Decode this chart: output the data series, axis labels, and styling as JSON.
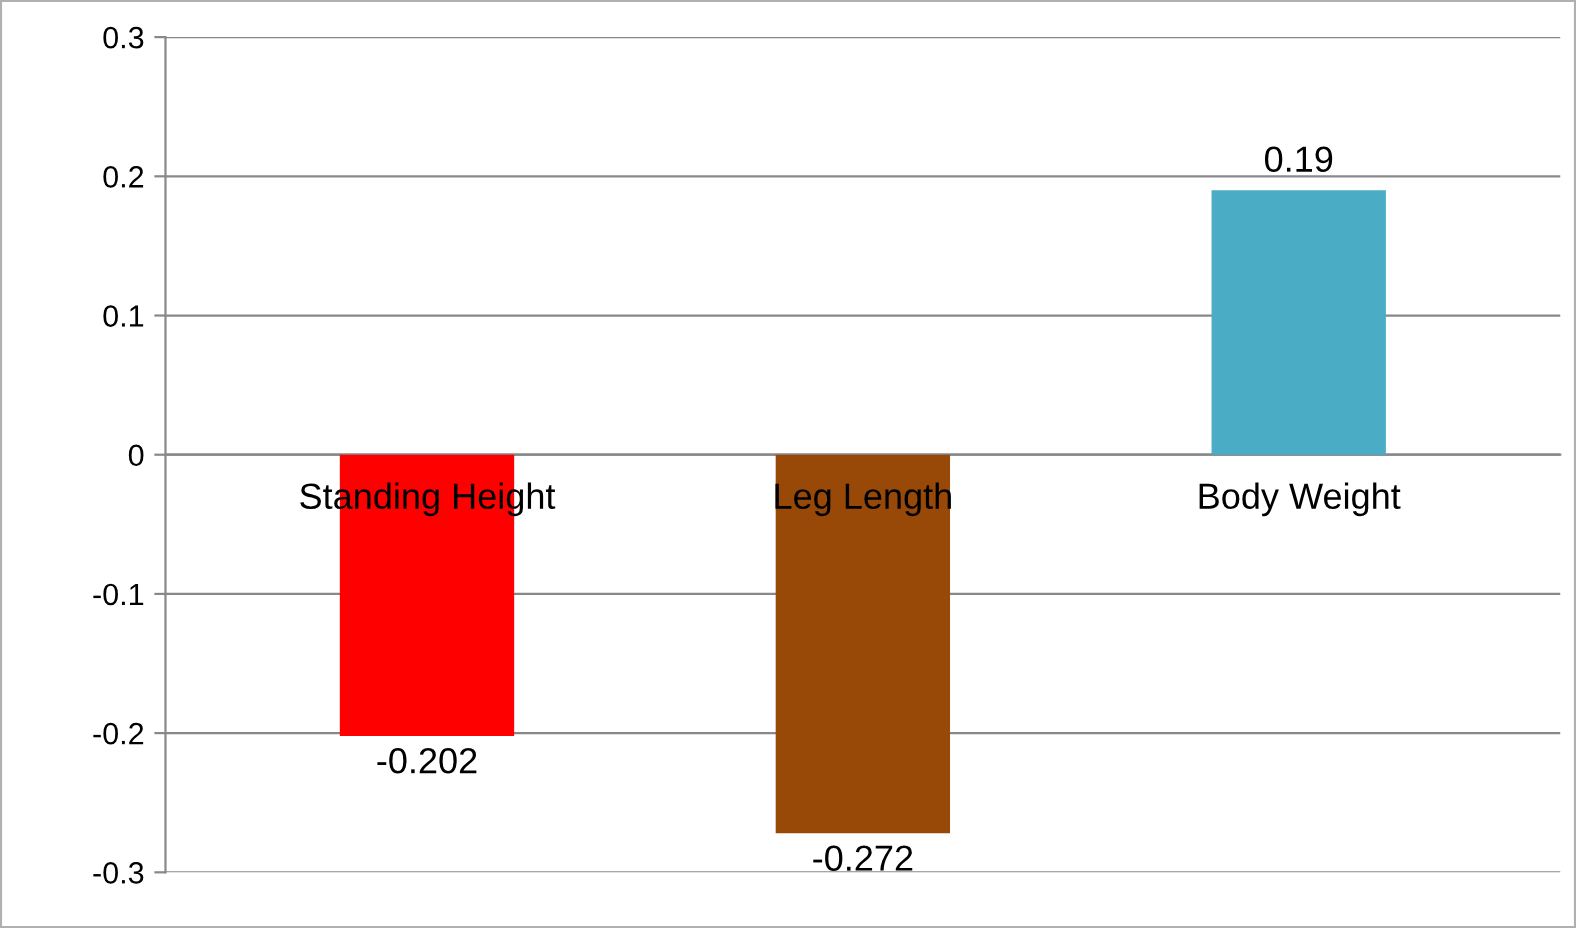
{
  "chart_data": {
    "type": "bar",
    "categories": [
      "Standing Height",
      "Leg Length",
      "Body Weight"
    ],
    "values": [
      -0.202,
      -0.272,
      0.19
    ],
    "colors": [
      "#ff0000",
      "#984807",
      "#4bacc6"
    ],
    "ylim": [
      -0.3,
      0.3
    ],
    "yticks": [
      -0.3,
      -0.2,
      -0.1,
      0,
      0.1,
      0.2,
      0.3
    ],
    "grid": "y",
    "data_labels": true
  }
}
